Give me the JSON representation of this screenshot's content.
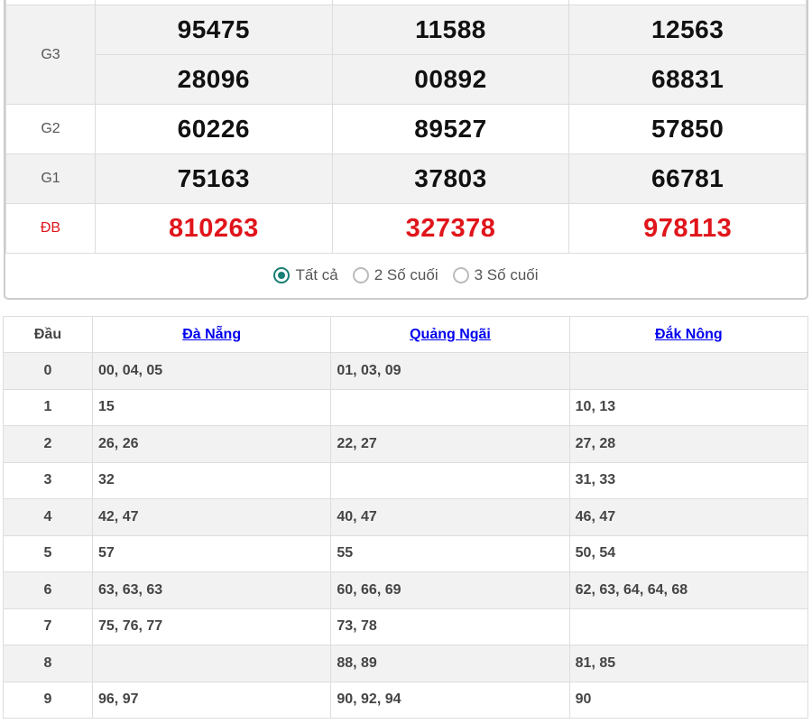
{
  "results": {
    "rows": [
      {
        "label": "",
        "values": [
          "",
          "",
          ""
        ]
      },
      {
        "label": "G3",
        "values": [
          "95475",
          "11588",
          "12563"
        ]
      },
      {
        "label": "",
        "values": [
          "28096",
          "00892",
          "68831"
        ]
      },
      {
        "label": "G2",
        "values": [
          "60226",
          "89527",
          "57850"
        ]
      },
      {
        "label": "G1",
        "values": [
          "75163",
          "37803",
          "66781"
        ]
      },
      {
        "label": "ĐB",
        "values": [
          "810263",
          "327378",
          "978113"
        ]
      }
    ],
    "special_color": "#e0151b"
  },
  "filter": {
    "options": [
      {
        "label": "Tất cả",
        "selected": true
      },
      {
        "label": "2 Số cuối",
        "selected": false
      },
      {
        "label": "3 Số cuối",
        "selected": false
      }
    ],
    "accent": "#1a7f74"
  },
  "loto": {
    "headers": [
      "Đầu",
      "Đà Nẵng",
      "Quảng Ngãi",
      "Đắk Nông"
    ],
    "rows": [
      [
        "0",
        "00, 04, 05",
        "01, 03, 09",
        ""
      ],
      [
        "1",
        "15",
        "",
        "10, 13"
      ],
      [
        "2",
        "26, 26",
        "22, 27",
        "27, 28"
      ],
      [
        "3",
        "32",
        "",
        "31, 33"
      ],
      [
        "4",
        "42, 47",
        "40, 47",
        "46, 47"
      ],
      [
        "5",
        "57",
        "55",
        "50, 54"
      ],
      [
        "6",
        "63, 63, 63",
        "60, 66, 69",
        "62, 63, 64, 64, 68"
      ],
      [
        "7",
        "75, 76, 77",
        "73, 78",
        ""
      ],
      [
        "8",
        "",
        "88, 89",
        "81, 85"
      ],
      [
        "9",
        "96, 97",
        "90, 92, 94",
        "90"
      ]
    ]
  }
}
